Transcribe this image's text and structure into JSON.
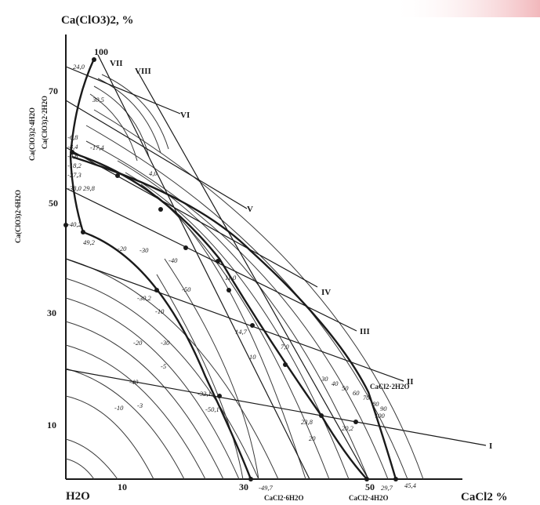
{
  "axes": {
    "y_title": "Ca(ClO3)2, %",
    "x_title": "CaCl2 %",
    "origin": "H2O",
    "y_ticks": [
      "10",
      "30",
      "50",
      "70",
      "100"
    ],
    "x_ticks": [
      "10",
      "30",
      "50"
    ]
  },
  "rays": [
    "I",
    "II",
    "III",
    "IV",
    "V",
    "VI",
    "VII",
    "VIII"
  ],
  "phases": {
    "left_1": "Ca(ClO3)2·6H2O",
    "left_2": "Ca(ClO3)2·4H2O",
    "left_3": "Ca(ClO3)2·2H2O",
    "bottom_1": "CaCl2·6H2O",
    "bottom_2": "CaCl2·4H2O",
    "right_1": "CaCl2·2H2O"
  },
  "left_values": [
    "-6,8",
    "-8,4",
    "-9,6",
    "-18,2",
    "-27,3",
    "-38,0",
    "-40,2"
  ],
  "top_values": [
    "24,0",
    "30,5"
  ],
  "bottom_values": [
    "-49,7",
    "29,7",
    "45,4",
    "50"
  ],
  "interior_values": [
    "-17,4",
    "4,0",
    "29,8",
    "49,2",
    "-50,1",
    "-32,1",
    "-30,2",
    "11,0",
    "14,7",
    "7,0",
    "23,8",
    "20,2",
    "-3",
    "-10"
  ],
  "curve_labels": [
    "-20",
    "-30",
    "-40",
    "-50",
    "-10",
    "-5",
    "10",
    "20",
    "30",
    "40",
    "50",
    "60",
    "70",
    "80",
    "90",
    "100",
    "-20",
    "-30",
    "-40"
  ],
  "colors": {
    "ink": "#1a1a1a",
    "grid": "#3a3a3a",
    "accent_corner": "#f2b8bc"
  }
}
